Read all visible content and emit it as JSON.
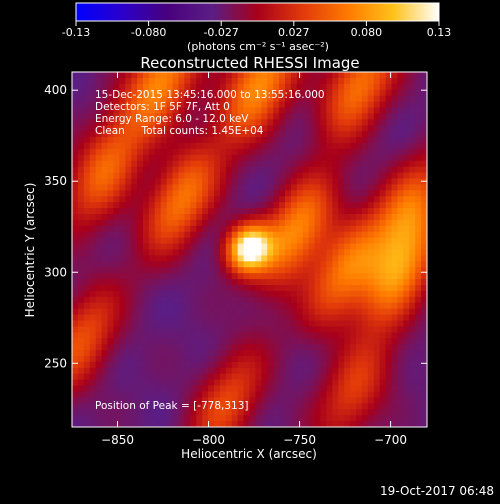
{
  "colorbar": {
    "tick_labels": [
      "-0.13",
      "-0.080",
      "-0.027",
      "0.027",
      "0.080",
      "0.13"
    ],
    "units_label": "(photons cm⁻² s⁻¹ asec⁻²)",
    "colormap": [
      "#0000ff",
      "#2a00cc",
      "#48007e",
      "#5a1e85",
      "#a8001a",
      "#e23a0a",
      "#ff7a00",
      "#ffc21a",
      "#ffffff"
    ]
  },
  "chart_data": {
    "type": "heatmap",
    "title": "Reconstructed RHESSI Image",
    "xlabel": "Heliocentric X (arcsec)",
    "ylabel": "Heliocentric Y (arcsec)",
    "xlim": [
      -875,
      -680
    ],
    "ylim": [
      215,
      410
    ],
    "x_ticks": [
      -850,
      -800,
      -750,
      -700
    ],
    "y_ticks": [
      250,
      300,
      350,
      400
    ],
    "zlim": [
      -0.13,
      0.13
    ],
    "peak": {
      "x": -778,
      "y": 313,
      "value": 0.13
    },
    "annotations": [
      "15-Dec-2015 13:45:16.000 to 13:55:16.000",
      "Detectors: 1F 5F 7F, Att 0",
      "Energy Range: 6.0 - 12.0 keV",
      "Clean     Total counts: 1.45E+04"
    ],
    "peak_label": "Position of Peak = [-778,313]",
    "sources": [
      {
        "x": -778,
        "y": 313,
        "value": 0.13
      },
      {
        "x": -752,
        "y": 322,
        "value": 0.07
      },
      {
        "x": -815,
        "y": 340,
        "value": 0.06
      },
      {
        "x": -858,
        "y": 355,
        "value": 0.05
      },
      {
        "x": -725,
        "y": 300,
        "value": 0.055
      },
      {
        "x": -695,
        "y": 300,
        "value": 0.065
      },
      {
        "x": -690,
        "y": 335,
        "value": 0.045
      },
      {
        "x": -826,
        "y": 405,
        "value": 0.07
      },
      {
        "x": -772,
        "y": 403,
        "value": 0.075
      },
      {
        "x": -717,
        "y": 403,
        "value": 0.06
      },
      {
        "x": -870,
        "y": 262,
        "value": 0.04
      },
      {
        "x": -790,
        "y": 228,
        "value": 0.035
      },
      {
        "x": -720,
        "y": 235,
        "value": 0.03
      }
    ]
  },
  "footer": {
    "timestamp": "19-Oct-2017 06:48"
  }
}
